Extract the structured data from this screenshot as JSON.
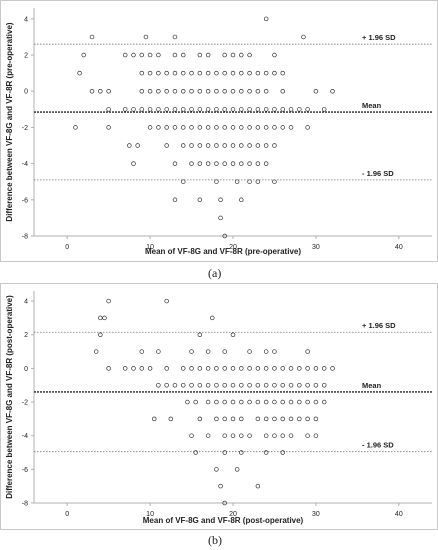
{
  "colors": {
    "frame": "#c8c8c8",
    "axis": "#b0b0b0",
    "text": "#222222",
    "refline": "#777777",
    "meanline": "#222222",
    "marker_stroke": "#333333"
  },
  "marker": "hollow-circle",
  "chart_data": [
    {
      "type": "scatter",
      "caption": "(a)",
      "xlabel": "Mean of VF-8G and VF-8R (pre-operative)",
      "ylabel": "Difference between VF-8G and VF-8R (pre-operative)",
      "xlim": [
        -4,
        44
      ],
      "ylim": [
        -8,
        4.6
      ],
      "xticks": [
        "0",
        "10",
        "20",
        "30",
        "40"
      ],
      "yticks": [
        "-8",
        "-6",
        "-4",
        "-2",
        "0",
        "2",
        "4"
      ],
      "grid": false,
      "reference_lines": [
        {
          "label": "+ 1.96 SD",
          "y": 2.6,
          "style": "dotted"
        },
        {
          "label": "Mean",
          "y": -1.15,
          "style": "dashed-bold"
        },
        {
          "label": "- 1.96 SD",
          "y": -4.9,
          "style": "dotted"
        }
      ],
      "points": [
        [
          3,
          3
        ],
        [
          9.5,
          3
        ],
        [
          13,
          3
        ],
        [
          24,
          4
        ],
        [
          28.5,
          3
        ],
        [
          2,
          2
        ],
        [
          7,
          2
        ],
        [
          8,
          2
        ],
        [
          9,
          2
        ],
        [
          10,
          2
        ],
        [
          11,
          2
        ],
        [
          13,
          2
        ],
        [
          14,
          2
        ],
        [
          16,
          2
        ],
        [
          17,
          2
        ],
        [
          19,
          2
        ],
        [
          20,
          2
        ],
        [
          21,
          2
        ],
        [
          22,
          2
        ],
        [
          25,
          2
        ],
        [
          1.5,
          1
        ],
        [
          9,
          1
        ],
        [
          10,
          1
        ],
        [
          11,
          1
        ],
        [
          12,
          1
        ],
        [
          13,
          1
        ],
        [
          14,
          1
        ],
        [
          15,
          1
        ],
        [
          16,
          1
        ],
        [
          17,
          1
        ],
        [
          18,
          1
        ],
        [
          19,
          1
        ],
        [
          20,
          1
        ],
        [
          21,
          1
        ],
        [
          22,
          1
        ],
        [
          23,
          1
        ],
        [
          24,
          1
        ],
        [
          25,
          1
        ],
        [
          26,
          1
        ],
        [
          3,
          0
        ],
        [
          4,
          0
        ],
        [
          5,
          0
        ],
        [
          9,
          0
        ],
        [
          10,
          0
        ],
        [
          11,
          0
        ],
        [
          12,
          0
        ],
        [
          13,
          0
        ],
        [
          14,
          0
        ],
        [
          15,
          0
        ],
        [
          16,
          0
        ],
        [
          17,
          0
        ],
        [
          18,
          0
        ],
        [
          19,
          0
        ],
        [
          20,
          0
        ],
        [
          21,
          0
        ],
        [
          22,
          0
        ],
        [
          23,
          0
        ],
        [
          24,
          0
        ],
        [
          26,
          0
        ],
        [
          30,
          0
        ],
        [
          32,
          0
        ],
        [
          5,
          -1
        ],
        [
          7,
          -1
        ],
        [
          8,
          -1
        ],
        [
          9,
          -1
        ],
        [
          10,
          -1
        ],
        [
          11,
          -1
        ],
        [
          12,
          -1
        ],
        [
          13,
          -1
        ],
        [
          14,
          -1
        ],
        [
          15,
          -1
        ],
        [
          16,
          -1
        ],
        [
          17,
          -1
        ],
        [
          18,
          -1
        ],
        [
          19,
          -1
        ],
        [
          20,
          -1
        ],
        [
          21,
          -1
        ],
        [
          22,
          -1
        ],
        [
          23,
          -1
        ],
        [
          24,
          -1
        ],
        [
          25,
          -1
        ],
        [
          26,
          -1
        ],
        [
          27,
          -1
        ],
        [
          28,
          -1
        ],
        [
          29,
          -1
        ],
        [
          31,
          -1
        ],
        [
          1,
          -2
        ],
        [
          5,
          -2
        ],
        [
          10,
          -2
        ],
        [
          11,
          -2
        ],
        [
          12,
          -2
        ],
        [
          13,
          -2
        ],
        [
          14,
          -2
        ],
        [
          15,
          -2
        ],
        [
          16,
          -2
        ],
        [
          17,
          -2
        ],
        [
          18,
          -2
        ],
        [
          19,
          -2
        ],
        [
          20,
          -2
        ],
        [
          21,
          -2
        ],
        [
          22,
          -2
        ],
        [
          23,
          -2
        ],
        [
          24,
          -2
        ],
        [
          25,
          -2
        ],
        [
          26,
          -2
        ],
        [
          27,
          -2
        ],
        [
          29,
          -2
        ],
        [
          7.5,
          -3
        ],
        [
          8.5,
          -3
        ],
        [
          12,
          -3
        ],
        [
          14,
          -3
        ],
        [
          15,
          -3
        ],
        [
          16,
          -3
        ],
        [
          17,
          -3
        ],
        [
          18,
          -3
        ],
        [
          19,
          -3
        ],
        [
          20,
          -3
        ],
        [
          21,
          -3
        ],
        [
          22,
          -3
        ],
        [
          23,
          -3
        ],
        [
          24,
          -3
        ],
        [
          25,
          -3
        ],
        [
          8,
          -4
        ],
        [
          13,
          -4
        ],
        [
          15,
          -4
        ],
        [
          16,
          -4
        ],
        [
          17,
          -4
        ],
        [
          18,
          -4
        ],
        [
          19,
          -4
        ],
        [
          20,
          -4
        ],
        [
          21,
          -4
        ],
        [
          22,
          -4
        ],
        [
          23,
          -4
        ],
        [
          24,
          -4
        ],
        [
          14,
          -5
        ],
        [
          18,
          -5
        ],
        [
          20.5,
          -5
        ],
        [
          22,
          -5
        ],
        [
          23,
          -5
        ],
        [
          25,
          -5
        ],
        [
          13,
          -6
        ],
        [
          16,
          -6
        ],
        [
          18.5,
          -6
        ],
        [
          21,
          -6
        ],
        [
          18.5,
          -7
        ],
        [
          19,
          -8
        ]
      ]
    },
    {
      "type": "scatter",
      "caption": "(b)",
      "xlabel": "Mean of VF-8G and VF-8R (post-operative)",
      "ylabel": "Difference between VF-8G and VF-8R (post-operative)",
      "xlim": [
        -4,
        44
      ],
      "ylim": [
        -8,
        4.6
      ],
      "xticks": [
        "0",
        "10",
        "20",
        "30",
        "40"
      ],
      "yticks": [
        "-8",
        "-6",
        "-4",
        "-2",
        "0",
        "2",
        "4"
      ],
      "grid": false,
      "reference_lines": [
        {
          "label": "+ 1.96 SD",
          "y": 2.15,
          "style": "dotted"
        },
        {
          "label": "Mean",
          "y": -1.4,
          "style": "dashed-bold"
        },
        {
          "label": "- 1.96 SD",
          "y": -4.95,
          "style": "dotted"
        }
      ],
      "points": [
        [
          5,
          4
        ],
        [
          12,
          4
        ],
        [
          4,
          3
        ],
        [
          4.5,
          3
        ],
        [
          17.5,
          3
        ],
        [
          4,
          2
        ],
        [
          16,
          2
        ],
        [
          20,
          2
        ],
        [
          3.5,
          1
        ],
        [
          9,
          1
        ],
        [
          11,
          1
        ],
        [
          15,
          1
        ],
        [
          17,
          1
        ],
        [
          19,
          1
        ],
        [
          22,
          1
        ],
        [
          24,
          1
        ],
        [
          25,
          1
        ],
        [
          29,
          1
        ],
        [
          5,
          0
        ],
        [
          7,
          0
        ],
        [
          8,
          0
        ],
        [
          9,
          0
        ],
        [
          10,
          0
        ],
        [
          12,
          0
        ],
        [
          14,
          0
        ],
        [
          15,
          0
        ],
        [
          16,
          0
        ],
        [
          17,
          0
        ],
        [
          18,
          0
        ],
        [
          19,
          0
        ],
        [
          20,
          0
        ],
        [
          21,
          0
        ],
        [
          22,
          0
        ],
        [
          23,
          0
        ],
        [
          24,
          0
        ],
        [
          25,
          0
        ],
        [
          26,
          0
        ],
        [
          27,
          0
        ],
        [
          28,
          0
        ],
        [
          29,
          0
        ],
        [
          30,
          0
        ],
        [
          31,
          0
        ],
        [
          32,
          0
        ],
        [
          11,
          -1
        ],
        [
          12,
          -1
        ],
        [
          13,
          -1
        ],
        [
          14,
          -1
        ],
        [
          15,
          -1
        ],
        [
          16,
          -1
        ],
        [
          17,
          -1
        ],
        [
          18,
          -1
        ],
        [
          19,
          -1
        ],
        [
          20,
          -1
        ],
        [
          21,
          -1
        ],
        [
          22,
          -1
        ],
        [
          23,
          -1
        ],
        [
          24,
          -1
        ],
        [
          25,
          -1
        ],
        [
          26,
          -1
        ],
        [
          27,
          -1
        ],
        [
          28,
          -1
        ],
        [
          29,
          -1
        ],
        [
          30,
          -1
        ],
        [
          31,
          -1
        ],
        [
          14.5,
          -2
        ],
        [
          15.5,
          -2
        ],
        [
          17,
          -2
        ],
        [
          18,
          -2
        ],
        [
          19,
          -2
        ],
        [
          20,
          -2
        ],
        [
          21,
          -2
        ],
        [
          22,
          -2
        ],
        [
          23,
          -2
        ],
        [
          24,
          -2
        ],
        [
          25,
          -2
        ],
        [
          26,
          -2
        ],
        [
          27,
          -2
        ],
        [
          28,
          -2
        ],
        [
          29,
          -2
        ],
        [
          30,
          -2
        ],
        [
          31,
          -2
        ],
        [
          10.5,
          -3
        ],
        [
          12.5,
          -3
        ],
        [
          16,
          -3
        ],
        [
          18,
          -3
        ],
        [
          19,
          -3
        ],
        [
          20,
          -3
        ],
        [
          21,
          -3
        ],
        [
          23,
          -3
        ],
        [
          24,
          -3
        ],
        [
          25,
          -3
        ],
        [
          26,
          -3
        ],
        [
          27,
          -3
        ],
        [
          28,
          -3
        ],
        [
          29,
          -3
        ],
        [
          30,
          -3
        ],
        [
          15,
          -4
        ],
        [
          17,
          -4
        ],
        [
          19,
          -4
        ],
        [
          20,
          -4
        ],
        [
          21,
          -4
        ],
        [
          22,
          -4
        ],
        [
          24,
          -4
        ],
        [
          25,
          -4
        ],
        [
          26,
          -4
        ],
        [
          27,
          -4
        ],
        [
          29,
          -4
        ],
        [
          30,
          -4
        ],
        [
          15.5,
          -5
        ],
        [
          19,
          -5
        ],
        [
          21,
          -5
        ],
        [
          24,
          -5
        ],
        [
          26,
          -5
        ],
        [
          18,
          -6
        ],
        [
          20.5,
          -6
        ],
        [
          18.5,
          -7
        ],
        [
          23,
          -7
        ],
        [
          19,
          -8
        ]
      ]
    }
  ]
}
